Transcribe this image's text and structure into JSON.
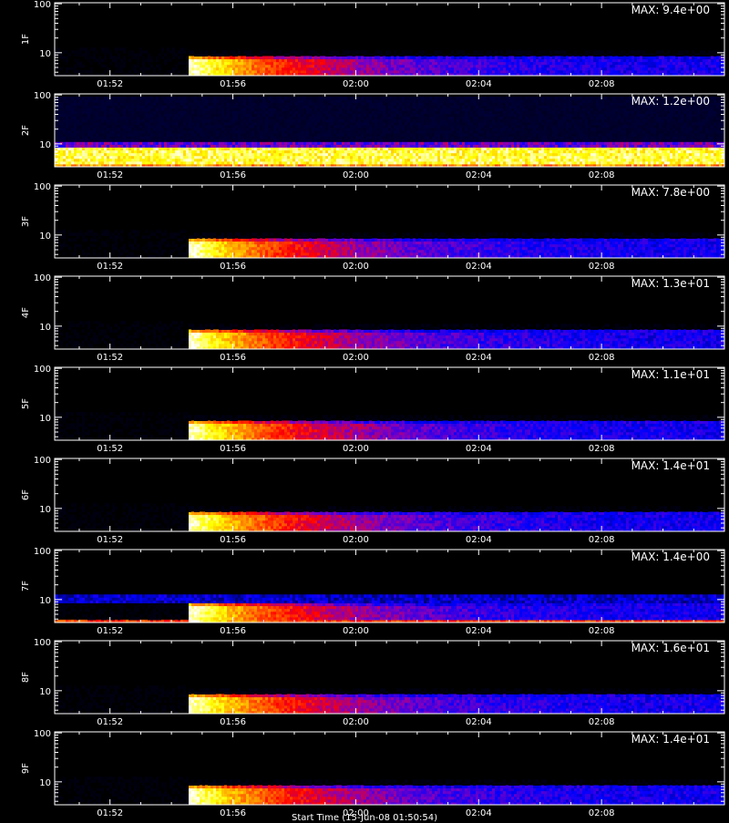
{
  "chart_data": {
    "type": "heatmap",
    "x_ticks": [
      "01:52",
      "01:56",
      "02:00",
      "02:04",
      "02:08"
    ],
    "x_tick_minutes": [
      112,
      116,
      120,
      124,
      128
    ],
    "x_range_minutes": [
      110.2,
      132.0
    ],
    "y_scale": "log",
    "y_ticks": [
      "10",
      "100"
    ],
    "y_tick_values": [
      10,
      100
    ],
    "y_range": [
      3.4,
      105
    ],
    "colormap": [
      "#000000",
      "#000040",
      "#0000ff",
      "#8000c0",
      "#ff0000",
      "#ff8000",
      "#ffff00",
      "#ffffff"
    ],
    "x_title": "Start Time (15-Jun-08 01:50:54)",
    "panels": [
      {
        "label": "1F",
        "max_text": "MAX: 9.4e+00",
        "mode": "burst",
        "onset_minute": 114.5
      },
      {
        "label": "2F",
        "max_text": "MAX: 1.2e+00",
        "mode": "continuous",
        "onset_minute": 110.2
      },
      {
        "label": "3F",
        "max_text": "MAX: 7.8e+00",
        "mode": "burst",
        "onset_minute": 114.5
      },
      {
        "label": "4F",
        "max_text": "MAX: 1.3e+01",
        "mode": "burst",
        "onset_minute": 114.5
      },
      {
        "label": "5F",
        "max_text": "MAX: 1.1e+01",
        "mode": "burst",
        "onset_minute": 114.5
      },
      {
        "label": "6F",
        "max_text": "MAX: 1.4e+01",
        "mode": "burst",
        "onset_minute": 114.5
      },
      {
        "label": "7F",
        "max_text": "MAX: 1.4e+00",
        "mode": "burst_with_low_band",
        "onset_minute": 114.5
      },
      {
        "label": "8F",
        "max_text": "MAX: 1.6e+01",
        "mode": "burst",
        "onset_minute": 114.5
      },
      {
        "label": "9F",
        "max_text": "MAX: 1.4e+01",
        "mode": "burst",
        "onset_minute": 114.5
      }
    ]
  }
}
